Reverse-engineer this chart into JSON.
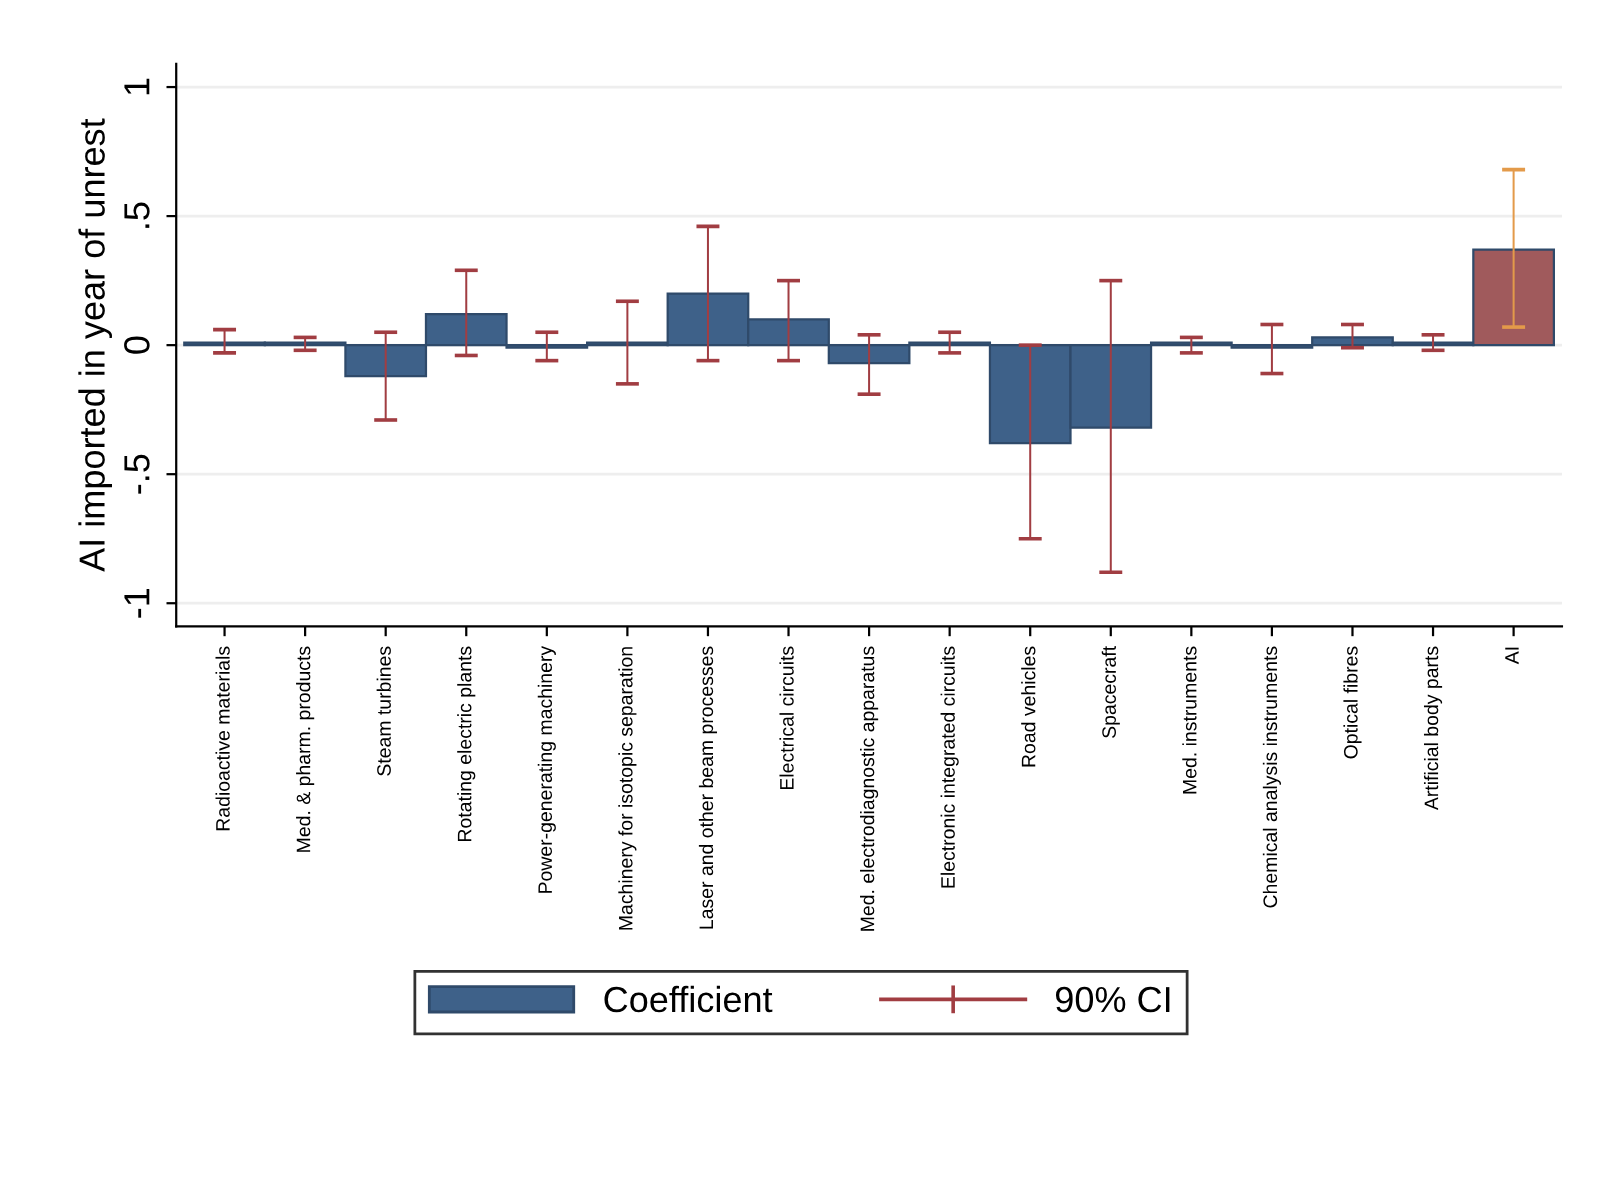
{
  "chart_data": {
    "type": "bar",
    "ylabel": "AI imported in year of unrest",
    "categories": [
      "Radioactive materials",
      "Med. & pharm. products",
      "Steam turbines",
      "Rotating electric plants",
      "Power-generating machinery",
      "Machinery for isotopic separation",
      "Laser and other beam processes",
      "Electrical circuits",
      "Med. electrodiagnostic apparatus",
      "Electronic integrated circuits",
      "Road vehicles",
      "Spacecraft",
      "Med. instruments",
      "Chemical analysis instruments",
      "Optical fibres",
      "Artificial body parts",
      "AI"
    ],
    "series": [
      {
        "name": "Coefficient",
        "color": "#3e6189",
        "colors": [
          "#3e6189",
          "#3e6189",
          "#3e6189",
          "#3e6189",
          "#3e6189",
          "#3e6189",
          "#3e6189",
          "#3e6189",
          "#3e6189",
          "#3e6189",
          "#3e6189",
          "#3e6189",
          "#3e6189",
          "#3e6189",
          "#3e6189",
          "#3e6189",
          "#a05a5c"
        ],
        "values": [
          0.01,
          0.01,
          -0.12,
          0.12,
          -0.01,
          0.01,
          0.2,
          0.1,
          -0.07,
          0.01,
          -0.38,
          -0.32,
          0.01,
          -0.01,
          0.03,
          0.01,
          0.37
        ]
      },
      {
        "name": "90% CI",
        "type": "bar",
        "color": "#a13d42",
        "base": [
          -0.03,
          -0.02,
          -0.29,
          -0.04,
          -0.06,
          -0.15,
          -0.06,
          -0.06,
          -0.19,
          -0.03,
          -0.75,
          -0.88,
          -0.03,
          -0.11,
          -0.01,
          -0.02,
          0.07
        ],
        "values": [
          0.09,
          0.05,
          0.34,
          0.33,
          0.11,
          0.32,
          0.52,
          0.31,
          0.23,
          0.08,
          0.75,
          1.13,
          0.06,
          0.19,
          0.09,
          0.06,
          0.61
        ],
        "colors": [
          "#a13d42",
          "#a13d42",
          "#a13d42",
          "#a13d42",
          "#a13d42",
          "#a13d42",
          "#a13d42",
          "#a13d42",
          "#a13d42",
          "#a13d42",
          "#a13d42",
          "#a13d42",
          "#a13d42",
          "#a13d42",
          "#a13d42",
          "#a13d42",
          "#e39a4a"
        ]
      }
    ],
    "ylim": [
      -1.09,
      1.09
    ],
    "yticks": [
      {
        "value": -1,
        "label": "-1"
      },
      {
        "value": -0.5,
        "label": "-.5"
      },
      {
        "value": 0,
        "label": "0"
      },
      {
        "value": 0.5,
        "label": ".5"
      },
      {
        "value": 1,
        "label": "1"
      }
    ],
    "grid": "y",
    "legend": "bottom"
  }
}
